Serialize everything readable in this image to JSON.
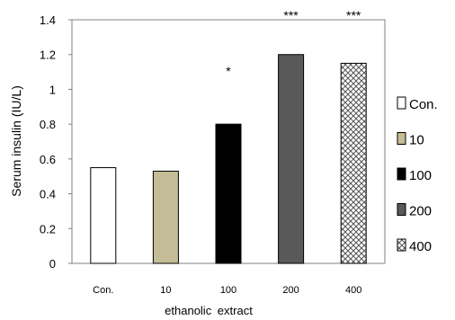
{
  "chart_data": {
    "type": "bar",
    "categories": [
      "Con.",
      "10",
      "100",
      "200",
      "400"
    ],
    "values": [
      0.55,
      0.53,
      0.8,
      1.2,
      1.15
    ],
    "significance": [
      "",
      "",
      "*",
      "***",
      "***"
    ],
    "ylabel": "Serum insulin (IU/L)",
    "xlabel": "ethanolic extract",
    "ylim": [
      0,
      1.4
    ],
    "yticks": [
      0,
      0.2,
      0.4,
      0.6,
      0.8,
      1,
      1.2,
      1.4
    ],
    "ytick_labels": [
      "0",
      "0.2",
      "0.4",
      "0.6",
      "0.8",
      "1",
      "1.2",
      "1.4"
    ],
    "legend": [
      "Con.",
      "10",
      "100",
      "200",
      "400"
    ],
    "legend_position": "right",
    "grid": false,
    "fills": [
      "#ffffff",
      "#c4bd97",
      "#000000",
      "#595959",
      "crosshatch"
    ]
  }
}
